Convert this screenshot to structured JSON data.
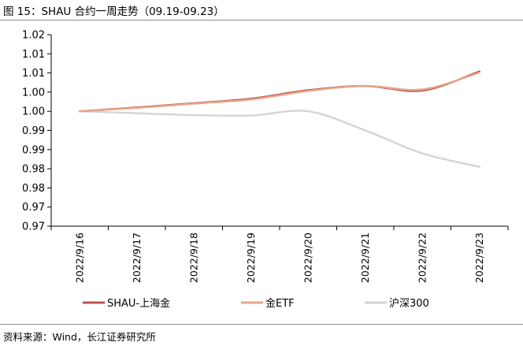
{
  "header": {
    "title": "图 15：SHAU 合约一周走势（09.19-09.23）"
  },
  "footer": {
    "source": "资料来源：Wind，长江证券研究所"
  },
  "chart_data": {
    "type": "line",
    "x": [
      "2022/9/16",
      "2022/9/17",
      "2022/9/18",
      "2022/9/19",
      "2022/9/20",
      "2022/9/21",
      "2022/9/22",
      "2022/9/23"
    ],
    "y_tick_labels": [
      "1.02",
      "1.01",
      "1.01",
      "1.00",
      "1.00",
      "0.99",
      "0.99",
      "0.98",
      "0.98",
      "0.97",
      "0.97"
    ],
    "ylim": [
      0.97,
      1.02
    ],
    "series": [
      {
        "name": "SHAU-上海金",
        "color": "#c0504d",
        "values": [
          1.0,
          1.001,
          1.0021,
          1.0033,
          1.0055,
          1.0066,
          1.0054,
          1.0104
        ]
      },
      {
        "name": "金ETF",
        "color": "#e6a68c",
        "values": [
          1.0,
          1.0009,
          1.002,
          1.0031,
          1.0053,
          1.0066,
          1.0057,
          1.0101
        ]
      },
      {
        "name": "沪深300",
        "color": "#d4d4d4",
        "values": [
          1.0,
          0.9995,
          0.999,
          0.9989,
          1.0,
          0.995,
          0.989,
          0.9855
        ]
      }
    ],
    "grid": false,
    "legend_position": "bottom"
  }
}
